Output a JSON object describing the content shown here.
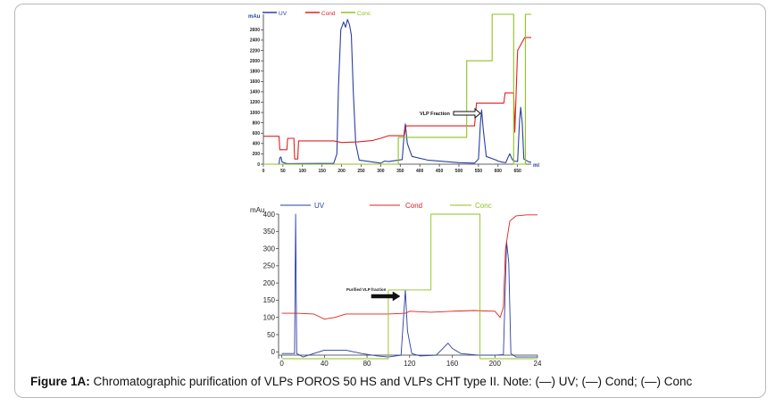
{
  "caption": {
    "label": "Figure 1A:",
    "text": "Chromatographic purification of VLPs POROS 50 HS and VLPs CHT type II. Note: (—) UV; (—) Cond; (—) Conc"
  },
  "colors": {
    "uv": "#2a3fa0",
    "cond": "#e02020",
    "conc": "#8dc21f"
  },
  "chart_data": [
    {
      "type": "line",
      "legend": [
        "UV",
        "Cond",
        "Conc"
      ],
      "legend_position": "top",
      "ylabel": "mAu",
      "xlabel": "ml",
      "xlim": [
        0,
        685
      ],
      "ylim": [
        0,
        2900
      ],
      "xticks": [
        "0",
        "50",
        "100",
        "150",
        "200",
        "250",
        "300",
        "350",
        "400",
        "450",
        "500",
        "550",
        "600",
        "650"
      ],
      "yticks": [
        "0",
        "200",
        "400",
        "600",
        "800",
        "1000",
        "1200",
        "1400",
        "1600",
        "1800",
        "2000",
        "2200",
        "2400",
        "2600"
      ],
      "annotation": "VLP Fraction",
      "series": [
        {
          "name": "UV",
          "color": "#2a3fa0",
          "points": [
            [
              0,
              0
            ],
            [
              40,
              0
            ],
            [
              42,
              120
            ],
            [
              45,
              140
            ],
            [
              48,
              40
            ],
            [
              60,
              10
            ],
            [
              180,
              15
            ],
            [
              188,
              200
            ],
            [
              192,
              1500
            ],
            [
              198,
              2600
            ],
            [
              205,
              2750
            ],
            [
              210,
              2650
            ],
            [
              215,
              2800
            ],
            [
              220,
              2700
            ],
            [
              225,
              2500
            ],
            [
              230,
              1400
            ],
            [
              236,
              400
            ],
            [
              245,
              80
            ],
            [
              300,
              20
            ],
            [
              310,
              60
            ],
            [
              320,
              50
            ],
            [
              355,
              90
            ],
            [
              360,
              600
            ],
            [
              363,
              780
            ],
            [
              368,
              400
            ],
            [
              380,
              150
            ],
            [
              420,
              80
            ],
            [
              500,
              30
            ],
            [
              540,
              20
            ],
            [
              550,
              100
            ],
            [
              555,
              800
            ],
            [
              558,
              1050
            ],
            [
              562,
              700
            ],
            [
              570,
              150
            ],
            [
              595,
              80
            ],
            [
              600,
              60
            ],
            [
              610,
              40
            ],
            [
              620,
              30
            ],
            [
              625,
              120
            ],
            [
              630,
              200
            ],
            [
              636,
              100
            ],
            [
              640,
              60
            ],
            [
              650,
              50
            ],
            [
              655,
              850
            ],
            [
              658,
              1100
            ],
            [
              662,
              800
            ],
            [
              666,
              100
            ],
            [
              680,
              40
            ],
            [
              685,
              40
            ]
          ]
        },
        {
          "name": "Cond",
          "color": "#e02020",
          "points": [
            [
              0,
              540
            ],
            [
              40,
              540
            ],
            [
              42,
              280
            ],
            [
              60,
              280
            ],
            [
              62,
              500
            ],
            [
              78,
              500
            ],
            [
              80,
              100
            ],
            [
              88,
              100
            ],
            [
              90,
              450
            ],
            [
              180,
              450
            ],
            [
              200,
              420
            ],
            [
              240,
              430
            ],
            [
              280,
              460
            ],
            [
              300,
              500
            ],
            [
              320,
              550
            ],
            [
              360,
              550
            ],
            [
              365,
              740
            ],
            [
              540,
              740
            ],
            [
              545,
              1180
            ],
            [
              615,
              1180
            ],
            [
              618,
              1380
            ],
            [
              640,
              1380
            ],
            [
              643,
              620
            ],
            [
              650,
              2200
            ],
            [
              668,
              2450
            ],
            [
              685,
              2450
            ]
          ]
        },
        {
          "name": "Conc",
          "color": "#8dc21f",
          "points": [
            [
              0,
              0
            ],
            [
              345,
              0
            ],
            [
              345,
              520
            ],
            [
              520,
              520
            ],
            [
              520,
              2000
            ],
            [
              585,
              2000
            ],
            [
              585,
              2900
            ],
            [
              640,
              2900
            ],
            [
              640,
              0
            ],
            [
              670,
              0
            ],
            [
              670,
              2900
            ],
            [
              685,
              2900
            ]
          ]
        }
      ]
    },
    {
      "type": "line",
      "legend": [
        "UV",
        "Cond",
        "Conc"
      ],
      "legend_position": "top",
      "ylabel": "mAu",
      "xlim": [
        -3,
        240
      ],
      "ylim": [
        -20,
        400
      ],
      "xticks": [
        "0",
        "40",
        "80",
        "120",
        "160",
        "200",
        "24"
      ],
      "yticks": [
        "0",
        "50",
        "100",
        "150",
        "200",
        "250",
        "300",
        "350",
        "400"
      ],
      "annotation": "Purified VLP fraction",
      "series": [
        {
          "name": "UV",
          "color": "#2a3fa0",
          "points": [
            [
              0,
              -5
            ],
            [
              12,
              -5
            ],
            [
              13,
              400
            ],
            [
              14,
              -5
            ],
            [
              20,
              -15
            ],
            [
              30,
              -5
            ],
            [
              40,
              5
            ],
            [
              60,
              5
            ],
            [
              75,
              -5
            ],
            [
              90,
              -12
            ],
            [
              100,
              -15
            ],
            [
              112,
              -10
            ],
            [
              116,
              180
            ],
            [
              118,
              60
            ],
            [
              122,
              -5
            ],
            [
              130,
              -12
            ],
            [
              145,
              -10
            ],
            [
              156,
              25
            ],
            [
              160,
              10
            ],
            [
              168,
              -5
            ],
            [
              185,
              -10
            ],
            [
              200,
              -10
            ],
            [
              208,
              -8
            ],
            [
              211,
              320
            ],
            [
              213,
              260
            ],
            [
              215,
              -5
            ],
            [
              220,
              -15
            ],
            [
              240,
              -15
            ]
          ]
        },
        {
          "name": "Cond",
          "color": "#e02020",
          "points": [
            [
              0,
              112
            ],
            [
              12,
              112
            ],
            [
              14,
              112
            ],
            [
              30,
              110
            ],
            [
              40,
              95
            ],
            [
              50,
              100
            ],
            [
              60,
              110
            ],
            [
              80,
              110
            ],
            [
              100,
              110
            ],
            [
              116,
              112
            ],
            [
              120,
              118
            ],
            [
              140,
              115
            ],
            [
              160,
              118
            ],
            [
              180,
              120
            ],
            [
              200,
              118
            ],
            [
              205,
              100
            ],
            [
              208,
              130
            ],
            [
              210,
              300
            ],
            [
              214,
              380
            ],
            [
              220,
              395
            ],
            [
              230,
              398
            ],
            [
              240,
              398
            ]
          ]
        },
        {
          "name": "Conc",
          "color": "#8dc21f",
          "points": [
            [
              0,
              -20
            ],
            [
              100,
              -20
            ],
            [
              100,
              180
            ],
            [
              140,
              180
            ],
            [
              140,
              400
            ],
            [
              186,
              400
            ],
            [
              186,
              -20
            ],
            [
              240,
              -20
            ]
          ]
        }
      ]
    }
  ]
}
